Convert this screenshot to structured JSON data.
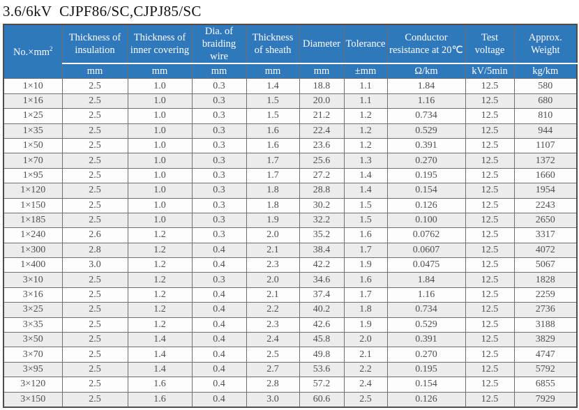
{
  "title": "3.6/6kV  CJPF86/SC,CJPJ85/SC",
  "colors": {
    "header_bg": "#2f78bc",
    "header_text": "#ffffff",
    "row_alt_bg": "#ececec",
    "row_bg": "#fdfdfd",
    "border": "#6e6e6e",
    "data_text": "#4f4f4f"
  },
  "table": {
    "columns": [
      {
        "label": "No.×mm",
        "sup": "2",
        "unit": null
      },
      {
        "label": "Thickness of insulation",
        "unit": "mm"
      },
      {
        "label": "Thickness of inner covering",
        "unit": "mm"
      },
      {
        "label": "Dia. of braiding wire",
        "unit": "mm"
      },
      {
        "label": "Thickness of sheath",
        "unit": "mm"
      },
      {
        "label": "Diameter",
        "unit": "mm"
      },
      {
        "label": "Tolerance",
        "unit": "±mm"
      },
      {
        "label": "Conductor resistance at 20℃",
        "unit": "Ω/km"
      },
      {
        "label": "Test voltage",
        "unit": "kV/5min"
      },
      {
        "label": "Approx. Weight",
        "unit": "kg/km"
      }
    ],
    "rows": [
      [
        "1×10",
        "2.5",
        "1.0",
        "0.3",
        "1.4",
        "18.8",
        "1.1",
        "1.84",
        "12.5",
        "580"
      ],
      [
        "1×16",
        "2.5",
        "1.0",
        "0.3",
        "1.5",
        "20.0",
        "1.1",
        "1.16",
        "12.5",
        "680"
      ],
      [
        "1×25",
        "2.5",
        "1.0",
        "0.3",
        "1.5",
        "21.2",
        "1.2",
        "0.734",
        "12.5",
        "810"
      ],
      [
        "1×35",
        "2.5",
        "1.0",
        "0.3",
        "1.6",
        "22.4",
        "1.2",
        "0.529",
        "12.5",
        "944"
      ],
      [
        "1×50",
        "2.5",
        "1.0",
        "0.3",
        "1.6",
        "23.6",
        "1.2",
        "0.391",
        "12.5",
        "1107"
      ],
      [
        "1×70",
        "2.5",
        "1.0",
        "0.3",
        "1.7",
        "25.6",
        "1.3",
        "0.270",
        "12.5",
        "1372"
      ],
      [
        "1×95",
        "2.5",
        "1.0",
        "0.3",
        "1.7",
        "27.2",
        "1.4",
        "0.195",
        "12.5",
        "1660"
      ],
      [
        "1×120",
        "2.5",
        "1.0",
        "0.3",
        "1.8",
        "28.8",
        "1.4",
        "0.154",
        "12.5",
        "1954"
      ],
      [
        "1×150",
        "2.5",
        "1.0",
        "0.3",
        "1.8",
        "30.2",
        "1.5",
        "0.126",
        "12.5",
        "2243"
      ],
      [
        "1×185",
        "2.5",
        "1.0",
        "0.3",
        "1.9",
        "32.2",
        "1.5",
        "0.100",
        "12.5",
        "2650"
      ],
      [
        "1×240",
        "2.6",
        "1.2",
        "0.3",
        "2.0",
        "35.2",
        "1.6",
        "0.0762",
        "12.5",
        "3317"
      ],
      [
        "1×300",
        "2.8",
        "1.2",
        "0.4",
        "2.1",
        "38.4",
        "1.7",
        "0.0607",
        "12.5",
        "4072"
      ],
      [
        "1×400",
        "3.0",
        "1.2",
        "0.4",
        "2.3",
        "42.2",
        "1.9",
        "0.0475",
        "12.5",
        "5067"
      ],
      [
        "3×10",
        "2.5",
        "1.2",
        "0.3",
        "2.0",
        "34.6",
        "1.6",
        "1.84",
        "12.5",
        "1828"
      ],
      [
        "3×16",
        "2.5",
        "1.2",
        "0.4",
        "2.1",
        "37.4",
        "1.7",
        "1.16",
        "12.5",
        "2259"
      ],
      [
        "3×25",
        "2.5",
        "1.2",
        "0.4",
        "2.2",
        "40.2",
        "1.8",
        "0.734",
        "12.5",
        "2736"
      ],
      [
        "3×35",
        "2.5",
        "1.2",
        "0.4",
        "2.3",
        "42.6",
        "1.9",
        "0.529",
        "12.5",
        "3188"
      ],
      [
        "3×50",
        "2.5",
        "1.4",
        "0.4",
        "2.4",
        "45.8",
        "2.0",
        "0.391",
        "12.5",
        "3829"
      ],
      [
        "3×70",
        "2.5",
        "1.4",
        "0.4",
        "2.5",
        "49.8",
        "2.1",
        "0.270",
        "12.5",
        "4747"
      ],
      [
        "3×95",
        "2.5",
        "1.4",
        "0.4",
        "2.7",
        "53.6",
        "2.2",
        "0.195",
        "12.5",
        "5792"
      ],
      [
        "3×120",
        "2.5",
        "1.6",
        "0.4",
        "2.8",
        "57.2",
        "2.4",
        "0.154",
        "12.5",
        "6855"
      ],
      [
        "3×150",
        "2.5",
        "1.6",
        "0.4",
        "3.0",
        "60.6",
        "2.5",
        "0.126",
        "12.5",
        "7929"
      ]
    ]
  }
}
